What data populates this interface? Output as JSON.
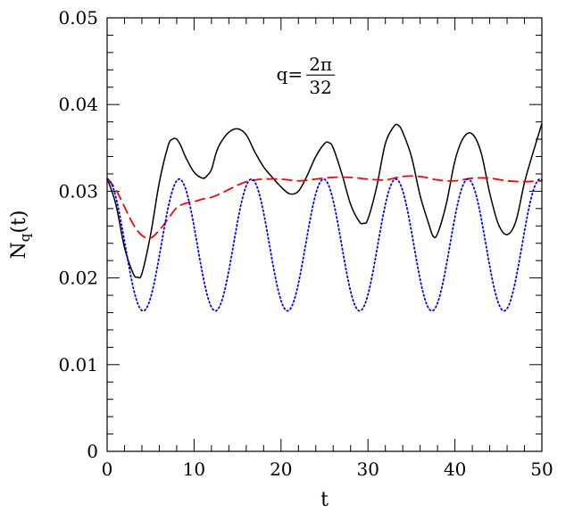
{
  "chart_data": {
    "type": "line",
    "title": "",
    "xlabel": "t",
    "ylabel_main": "N",
    "ylabel_sub": "q",
    "ylabel_tail": "(t)",
    "xlim": [
      0,
      50
    ],
    "ylim": [
      0,
      0.05
    ],
    "x_ticks": [
      0,
      10,
      20,
      30,
      40,
      50
    ],
    "x_tick_labels": [
      "0",
      "10",
      "20",
      "30",
      "40",
      "50"
    ],
    "y_ticks": [
      0,
      0.01,
      0.02,
      0.03,
      0.04,
      0.05
    ],
    "y_tick_labels": [
      "0",
      "0.01",
      "0.02",
      "0.03",
      "0.04",
      "0.05"
    ],
    "x_minor_step": 2,
    "y_minor_step": 0.002,
    "grid": false,
    "legend": "none",
    "annotation": {
      "prefix": "q=",
      "numerator": "2π",
      "denominator": "32",
      "x": 22.5,
      "y": 0.0435
    },
    "series": [
      {
        "style": "solid",
        "color": "#000000",
        "x": [
          0,
          1,
          2,
          3,
          3.5,
          4,
          5,
          6,
          7,
          7.5,
          8,
          8.5,
          9,
          10,
          11,
          11.5,
          12,
          12.5,
          13,
          14,
          15,
          16,
          17,
          18,
          19,
          20,
          21,
          22,
          23,
          24,
          25,
          25.5,
          26,
          27,
          28,
          29,
          29.5,
          30,
          31,
          32,
          33,
          33.5,
          34,
          35,
          36,
          37,
          37.5,
          38,
          39,
          40,
          41,
          42,
          43,
          44,
          45,
          46,
          47,
          48,
          49,
          50
        ],
        "y": [
          0.0315,
          0.0285,
          0.0235,
          0.0205,
          0.0201,
          0.0205,
          0.025,
          0.031,
          0.0352,
          0.036,
          0.036,
          0.0352,
          0.034,
          0.0322,
          0.0315,
          0.0318,
          0.0325,
          0.0343,
          0.0355,
          0.0368,
          0.0372,
          0.0365,
          0.0345,
          0.0328,
          0.0316,
          0.0305,
          0.0297,
          0.03,
          0.0318,
          0.034,
          0.0355,
          0.0356,
          0.035,
          0.032,
          0.0285,
          0.0265,
          0.0263,
          0.0268,
          0.0305,
          0.0355,
          0.0375,
          0.0376,
          0.0368,
          0.034,
          0.0295,
          0.0262,
          0.0248,
          0.0251,
          0.0285,
          0.0335,
          0.0362,
          0.0366,
          0.0345,
          0.0298,
          0.0262,
          0.025,
          0.0265,
          0.031,
          0.0345,
          0.0378
        ]
      },
      {
        "style": "dashed",
        "color": "#ff0000",
        "x": [
          0,
          1,
          2,
          3,
          4,
          5,
          6,
          7,
          8,
          9,
          10,
          11,
          12,
          13,
          14,
          15,
          16,
          17,
          18,
          20,
          22,
          24,
          26,
          28,
          30,
          32,
          34,
          36,
          38,
          40,
          42,
          44,
          46,
          48,
          50
        ],
        "y": [
          0.0315,
          0.0302,
          0.0282,
          0.0262,
          0.0249,
          0.0246,
          0.0255,
          0.0268,
          0.0281,
          0.0286,
          0.0288,
          0.0291,
          0.0293,
          0.0297,
          0.0302,
          0.0307,
          0.0311,
          0.0313,
          0.0314,
          0.0314,
          0.0312,
          0.0314,
          0.0316,
          0.0316,
          0.0314,
          0.0313,
          0.0317,
          0.0317,
          0.0313,
          0.0312,
          0.0315,
          0.0315,
          0.0312,
          0.0311,
          0.0312
        ]
      },
      {
        "style": "dotted",
        "color": "#0000ff",
        "model": "cosine",
        "x_range": [
          0,
          50
        ],
        "mean": 0.0238,
        "amplitude": 0.0076,
        "period": 8.3,
        "phase": 0
      }
    ]
  }
}
